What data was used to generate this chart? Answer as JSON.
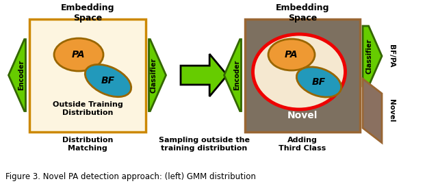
{
  "bg_color": "#ffffff",
  "fig_caption": "Figure 3. Novel PA detection approach: (left) GMM distribution",
  "title_embedding1": "Embedding\nSpace",
  "title_embedding2": "Embedding\nSpace",
  "label_dist_match": "Distribution\nMatching",
  "label_sampling": "Sampling outside the\ntraining distribution",
  "label_adding": "Adding\nThird Class",
  "label_outside": "Outside Training\nDistribution",
  "label_novel": "Novel",
  "green_color": "#66cc00",
  "green_dark": "#336600",
  "box1_bg": "#fdf5e0",
  "box1_border": "#cc8800",
  "box2_bg": "#7d7060",
  "box2_border": "#996633",
  "pa_color": "#ee9933",
  "pa_border": "#996600",
  "bf_color": "#2299bb",
  "bf_border": "#116688",
  "novel_circle_color": "#ee0000",
  "novel_inner_color": "#f5e8d0",
  "brown_box_color": "#996633",
  "brown_box_bg": "#8a7060"
}
